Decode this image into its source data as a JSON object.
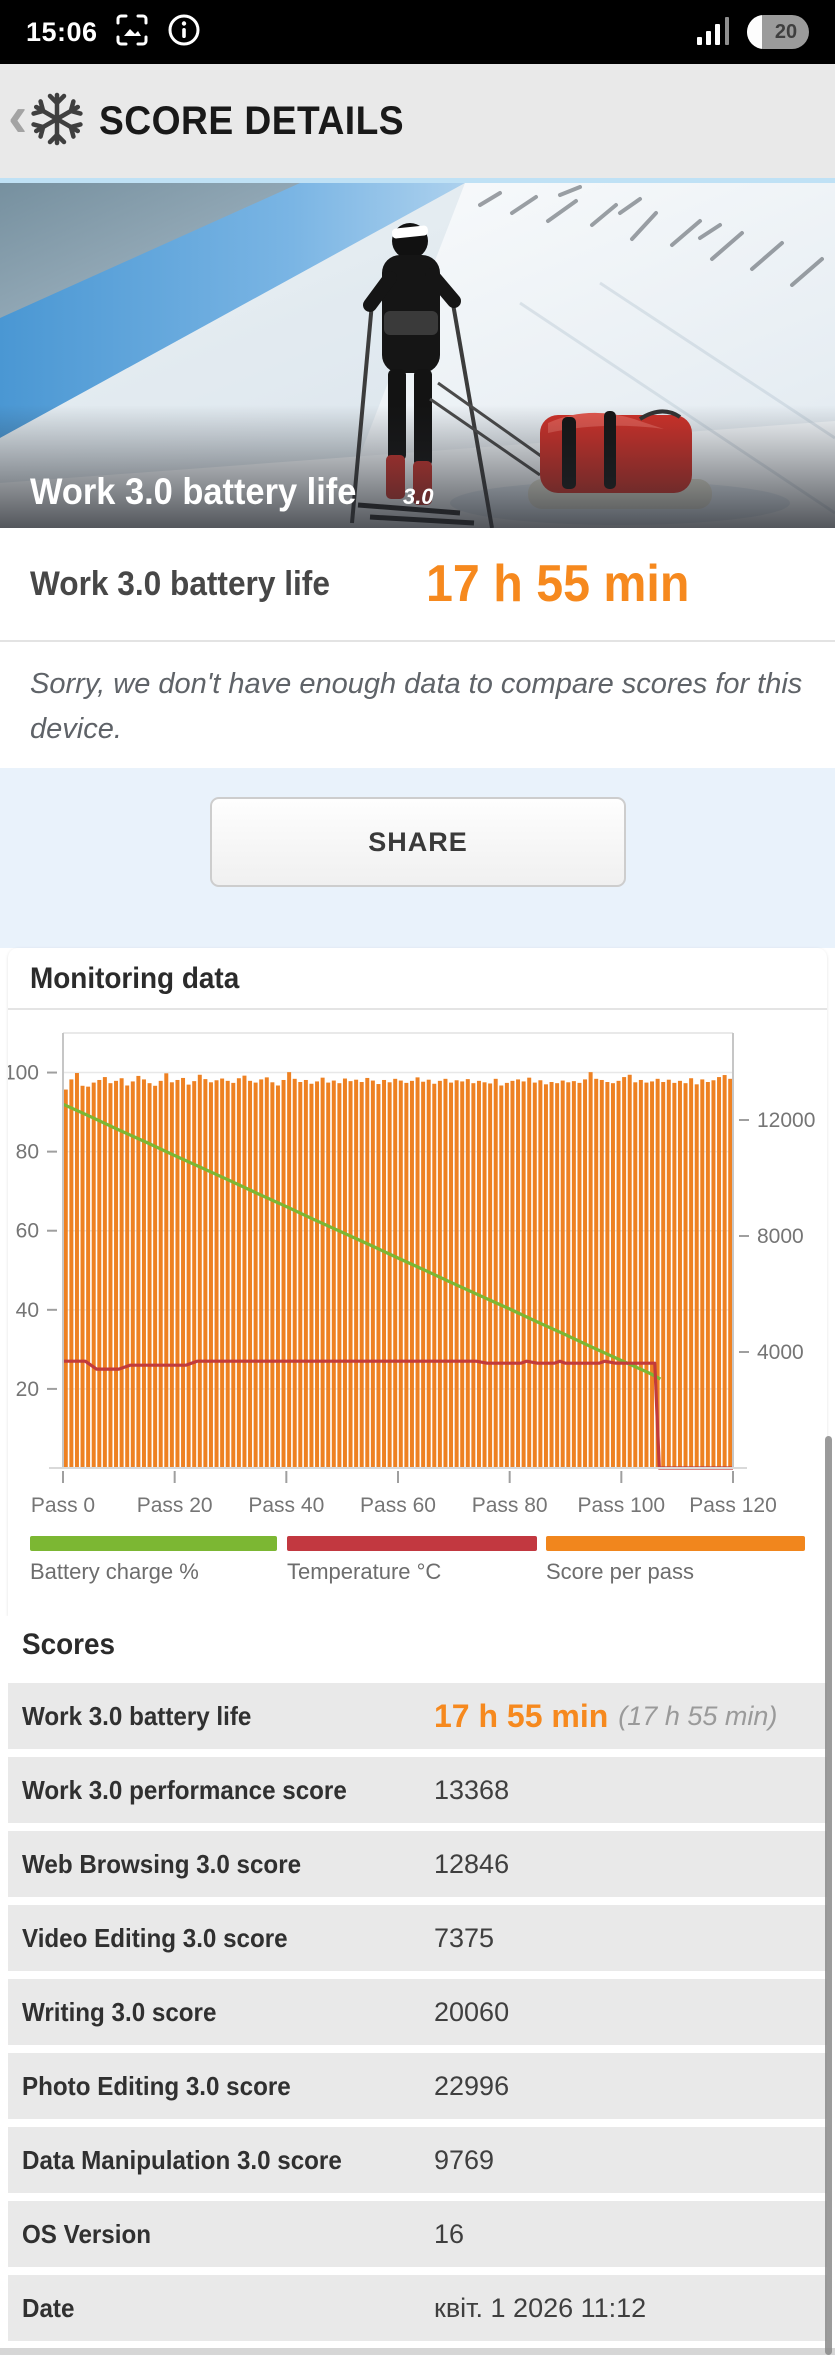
{
  "status_bar": {
    "time": "15:06",
    "battery_percent": "20"
  },
  "header": {
    "back": "‹",
    "title": "SCORE DETAILS"
  },
  "hero": {
    "caption": "Work 3.0 battery life",
    "caption_version": "3.0"
  },
  "result": {
    "label": "Work 3.0 battery life",
    "value": "17 h 55 min"
  },
  "notice": "Sorry, we don't have enough data to compare scores for this device.",
  "share_label": "SHARE",
  "monitoring_title": "Monitoring data",
  "colors": {
    "accent_orange": "#F6891E",
    "bar_orange": "#EE8122",
    "battery_green": "#7CB733",
    "temp_red": "#C23B3B",
    "header_bg": "#E9E9E9",
    "share_bg": "#E9F2FB"
  },
  "chart_data": {
    "type": "bar+line",
    "title": "Monitoring data",
    "x_tick_prefix": "Pass",
    "x_ticks": [
      0,
      20,
      40,
      60,
      80,
      100,
      120
    ],
    "x_max": 120,
    "left_axis": {
      "ticks": [
        20,
        40,
        60,
        80,
        100
      ],
      "max": 110
    },
    "right_axis": {
      "ticks": [
        4000,
        8000,
        12000
      ],
      "max": 15000
    },
    "series": [
      {
        "name": "Score per pass",
        "type": "bar",
        "axis": "right",
        "color": "#EE8122",
        "values": [
          13050,
          13400,
          13620,
          13180,
          13150,
          13290,
          13380,
          13480,
          13270,
          13350,
          13440,
          13190,
          13330,
          13520,
          13400,
          13270,
          13180,
          13350,
          13610,
          13300,
          13380,
          13450,
          13220,
          13340,
          13560,
          13410,
          13300,
          13370,
          13430,
          13350,
          13280,
          13440,
          13530,
          13350,
          13290,
          13400,
          13470,
          13300,
          13190,
          13380,
          13650,
          13420,
          13310,
          13380,
          13250,
          13330,
          13460,
          13290,
          13360,
          13270,
          13430,
          13340,
          13390,
          13310,
          13450,
          13360,
          13240,
          13380,
          13300,
          13420,
          13360,
          13280,
          13350,
          13470,
          13320,
          13390,
          13250,
          13350,
          13420,
          13290,
          13370,
          13330,
          13410,
          13270,
          13350,
          13300,
          13260,
          13420,
          13190,
          13280,
          13350,
          13400,
          13330,
          13460,
          13290,
          13370,
          13230,
          13310,
          13270,
          13360,
          13300,
          13340,
          13280,
          13400,
          13650,
          13420,
          13380,
          13310,
          13270,
          13350,
          13480,
          13560,
          13300,
          13380,
          13290,
          13330,
          13420,
          13310,
          13390,
          13280,
          13350,
          13270,
          13440,
          13230,
          13400,
          13310,
          13370,
          13480,
          13550,
          13420
        ]
      },
      {
        "name": "Battery charge %",
        "type": "line",
        "axis": "left",
        "color": "#7CB733",
        "points": [
          [
            0,
            92
          ],
          [
            5,
            88.8
          ],
          [
            10,
            85.5
          ],
          [
            15,
            82.3
          ],
          [
            20,
            79
          ],
          [
            25,
            75.8
          ],
          [
            30,
            72.6
          ],
          [
            35,
            69.3
          ],
          [
            40,
            66.1
          ],
          [
            45,
            62.8
          ],
          [
            50,
            59.6
          ],
          [
            55,
            56.4
          ],
          [
            60,
            53.1
          ],
          [
            65,
            49.9
          ],
          [
            70,
            46.6
          ],
          [
            75,
            43.4
          ],
          [
            80,
            40.2
          ],
          [
            85,
            36.9
          ],
          [
            90,
            33.7
          ],
          [
            95,
            30.4
          ],
          [
            100,
            27.2
          ],
          [
            105,
            24
          ],
          [
            107,
            22.5
          ]
        ]
      },
      {
        "name": "Temperature °C",
        "type": "line",
        "axis": "left",
        "color": "#C23B3B",
        "points": [
          [
            0,
            27
          ],
          [
            4,
            27
          ],
          [
            6,
            25
          ],
          [
            10,
            25
          ],
          [
            12,
            26
          ],
          [
            22,
            26
          ],
          [
            24,
            27
          ],
          [
            74,
            27
          ],
          [
            76,
            26.5
          ],
          [
            82,
            26.5
          ],
          [
            83,
            27
          ],
          [
            85,
            26.5
          ],
          [
            88,
            26.5
          ],
          [
            89,
            27
          ],
          [
            90,
            26.5
          ],
          [
            96,
            26.5
          ],
          [
            97,
            27
          ],
          [
            99,
            26.5
          ],
          [
            106,
            26.5
          ],
          [
            106.8,
            0
          ],
          [
            120,
            0
          ]
        ]
      }
    ],
    "legend": [
      {
        "label": "Battery charge %",
        "color": "#7CB733"
      },
      {
        "label": "Temperature °C",
        "color": "#C23840"
      },
      {
        "label": "Score per pass",
        "color": "#F1861D"
      }
    ]
  },
  "scores": {
    "title": "Scores",
    "rows": [
      {
        "label": "Work 3.0 battery life",
        "value": "17 h 55 min",
        "extra": "(17 h 55 min)",
        "highlight": true
      },
      {
        "label": "Work 3.0 performance score",
        "value": "13368"
      },
      {
        "label": "Web Browsing 3.0 score",
        "value": "12846"
      },
      {
        "label": "Video Editing 3.0 score",
        "value": "7375"
      },
      {
        "label": "Writing 3.0 score",
        "value": "20060"
      },
      {
        "label": "Photo Editing 3.0 score",
        "value": "22996"
      },
      {
        "label": "Data Manipulation 3.0 score",
        "value": "9769"
      },
      {
        "label": "OS Version",
        "value": "16"
      },
      {
        "label": "Date",
        "value": "квіт. 1 2026 11:12"
      }
    ]
  }
}
